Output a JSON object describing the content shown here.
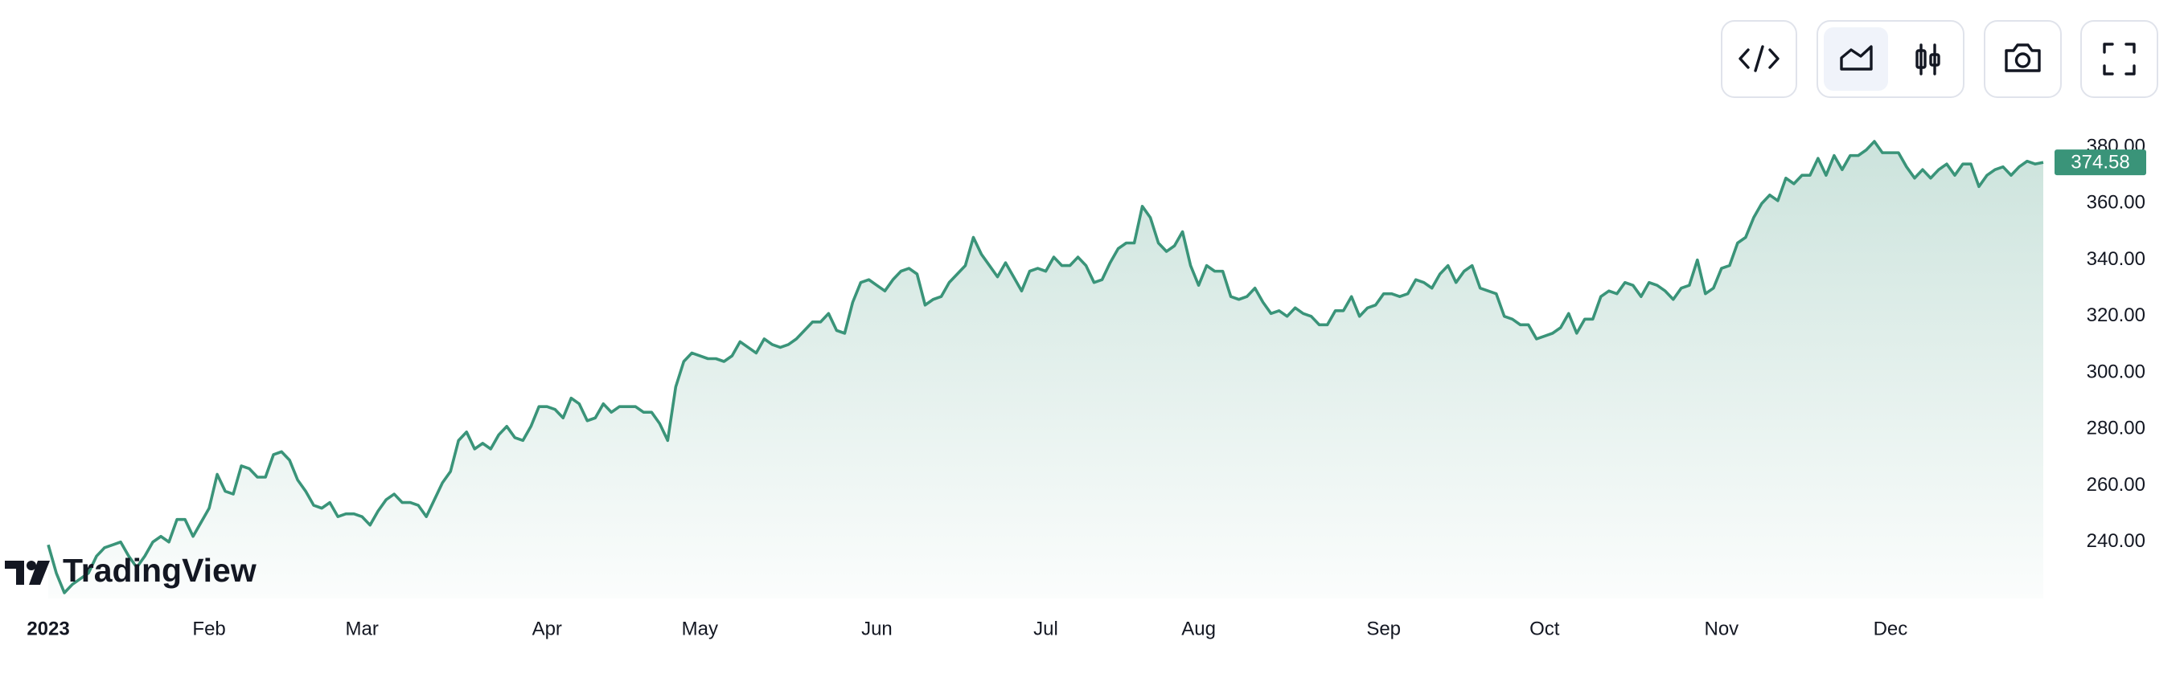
{
  "logo": "TradingView",
  "chart_data": {
    "type": "area",
    "color": "#3a9479",
    "values": [
      239,
      229,
      222,
      225,
      227,
      229,
      235,
      238,
      239,
      240,
      235,
      231,
      235,
      240,
      242,
      240,
      248,
      248,
      242,
      247,
      252,
      264,
      258,
      257,
      267,
      266,
      263,
      263,
      271,
      272,
      269,
      262,
      258,
      253,
      252,
      254,
      249,
      250,
      250,
      249,
      246,
      251,
      255,
      257,
      254,
      254,
      253,
      249,
      255,
      261,
      265,
      276,
      279,
      273,
      275,
      273,
      278,
      281,
      277,
      276,
      281,
      288,
      288,
      287,
      284,
      291,
      289,
      283,
      284,
      289,
      286,
      288,
      288,
      288,
      286,
      286,
      282,
      276,
      295,
      304,
      307,
      306,
      305,
      305,
      304,
      306,
      311,
      309,
      307,
      312,
      310,
      309,
      310,
      312,
      315,
      318,
      318,
      321,
      315,
      314,
      325,
      332,
      333,
      331,
      329,
      333,
      336,
      337,
      335,
      324,
      326,
      327,
      332,
      335,
      338,
      348,
      342,
      338,
      334,
      339,
      334,
      329,
      336,
      337,
      336,
      341,
      338,
      338,
      341,
      338,
      332,
      333,
      339,
      344,
      346,
      346,
      359,
      355,
      346,
      343,
      345,
      350,
      338,
      331,
      338,
      336,
      336,
      327,
      326,
      327,
      330,
      325,
      321,
      322,
      320,
      323,
      321,
      320,
      317,
      317,
      322,
      322,
      327,
      320,
      323,
      324,
      328,
      328,
      327,
      328,
      333,
      332,
      330,
      335,
      338,
      332,
      336,
      338,
      330,
      329,
      328,
      320,
      319,
      317,
      317,
      312,
      313,
      314,
      316,
      321,
      314,
      319,
      319,
      327,
      329,
      328,
      332,
      331,
      327,
      332,
      331,
      329,
      326,
      330,
      331,
      340,
      328,
      330,
      337,
      338,
      346,
      348,
      355,
      360,
      363,
      361,
      369,
      367,
      370,
      370,
      376,
      370,
      377,
      372,
      377,
      377,
      379,
      382,
      378,
      378,
      378,
      373,
      369,
      372,
      369,
      372,
      374,
      370,
      374,
      374,
      366,
      370,
      372,
      373,
      370,
      373,
      375,
      374,
      374.58
    ],
    "xlim": [
      -6,
      248
    ],
    "xticks": [
      {
        "value": 0,
        "label": "2023"
      },
      {
        "value": 20,
        "label": "Feb"
      },
      {
        "value": 39,
        "label": "Mar"
      },
      {
        "value": 62,
        "label": "Apr"
      },
      {
        "value": 81,
        "label": "May"
      },
      {
        "value": 103,
        "label": "Jun"
      },
      {
        "value": 124,
        "label": "Jul"
      },
      {
        "value": 143,
        "label": "Aug"
      },
      {
        "value": 166,
        "label": "Sep"
      },
      {
        "value": 186,
        "label": "Oct"
      },
      {
        "value": 208,
        "label": "Nov"
      },
      {
        "value": 229,
        "label": "Dec"
      }
    ],
    "ylim": [
      220,
      388
    ],
    "yticks": [
      {
        "value": 240,
        "label": "240.00"
      },
      {
        "value": 260,
        "label": "260.00"
      },
      {
        "value": 280,
        "label": "280.00"
      },
      {
        "value": 300,
        "label": "300.00"
      },
      {
        "value": 320,
        "label": "320.00"
      },
      {
        "value": 340,
        "label": "340.00"
      },
      {
        "value": 360,
        "label": "360.00"
      },
      {
        "value": 380,
        "label": "380.00"
      }
    ]
  }
}
